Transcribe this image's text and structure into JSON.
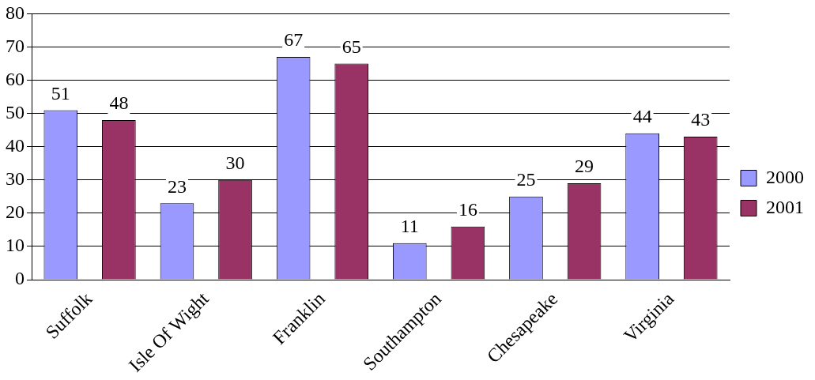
{
  "chart_data": {
    "type": "bar",
    "categories": [
      "Suffolk",
      "Isle Of Wight",
      "Franklin",
      "Southampton",
      "Chesapeake",
      "Virginia"
    ],
    "series": [
      {
        "name": "2000",
        "color": "#9999ff",
        "values": [
          51,
          23,
          67,
          11,
          25,
          44
        ]
      },
      {
        "name": "2001",
        "color": "#993366",
        "values": [
          48,
          30,
          65,
          16,
          29,
          43
        ]
      }
    ],
    "ylim": [
      0,
      80
    ],
    "yticks": [
      0,
      10,
      20,
      30,
      40,
      50,
      60,
      70,
      80
    ],
    "grid": "y",
    "legend": "right",
    "data_labels": true
  }
}
